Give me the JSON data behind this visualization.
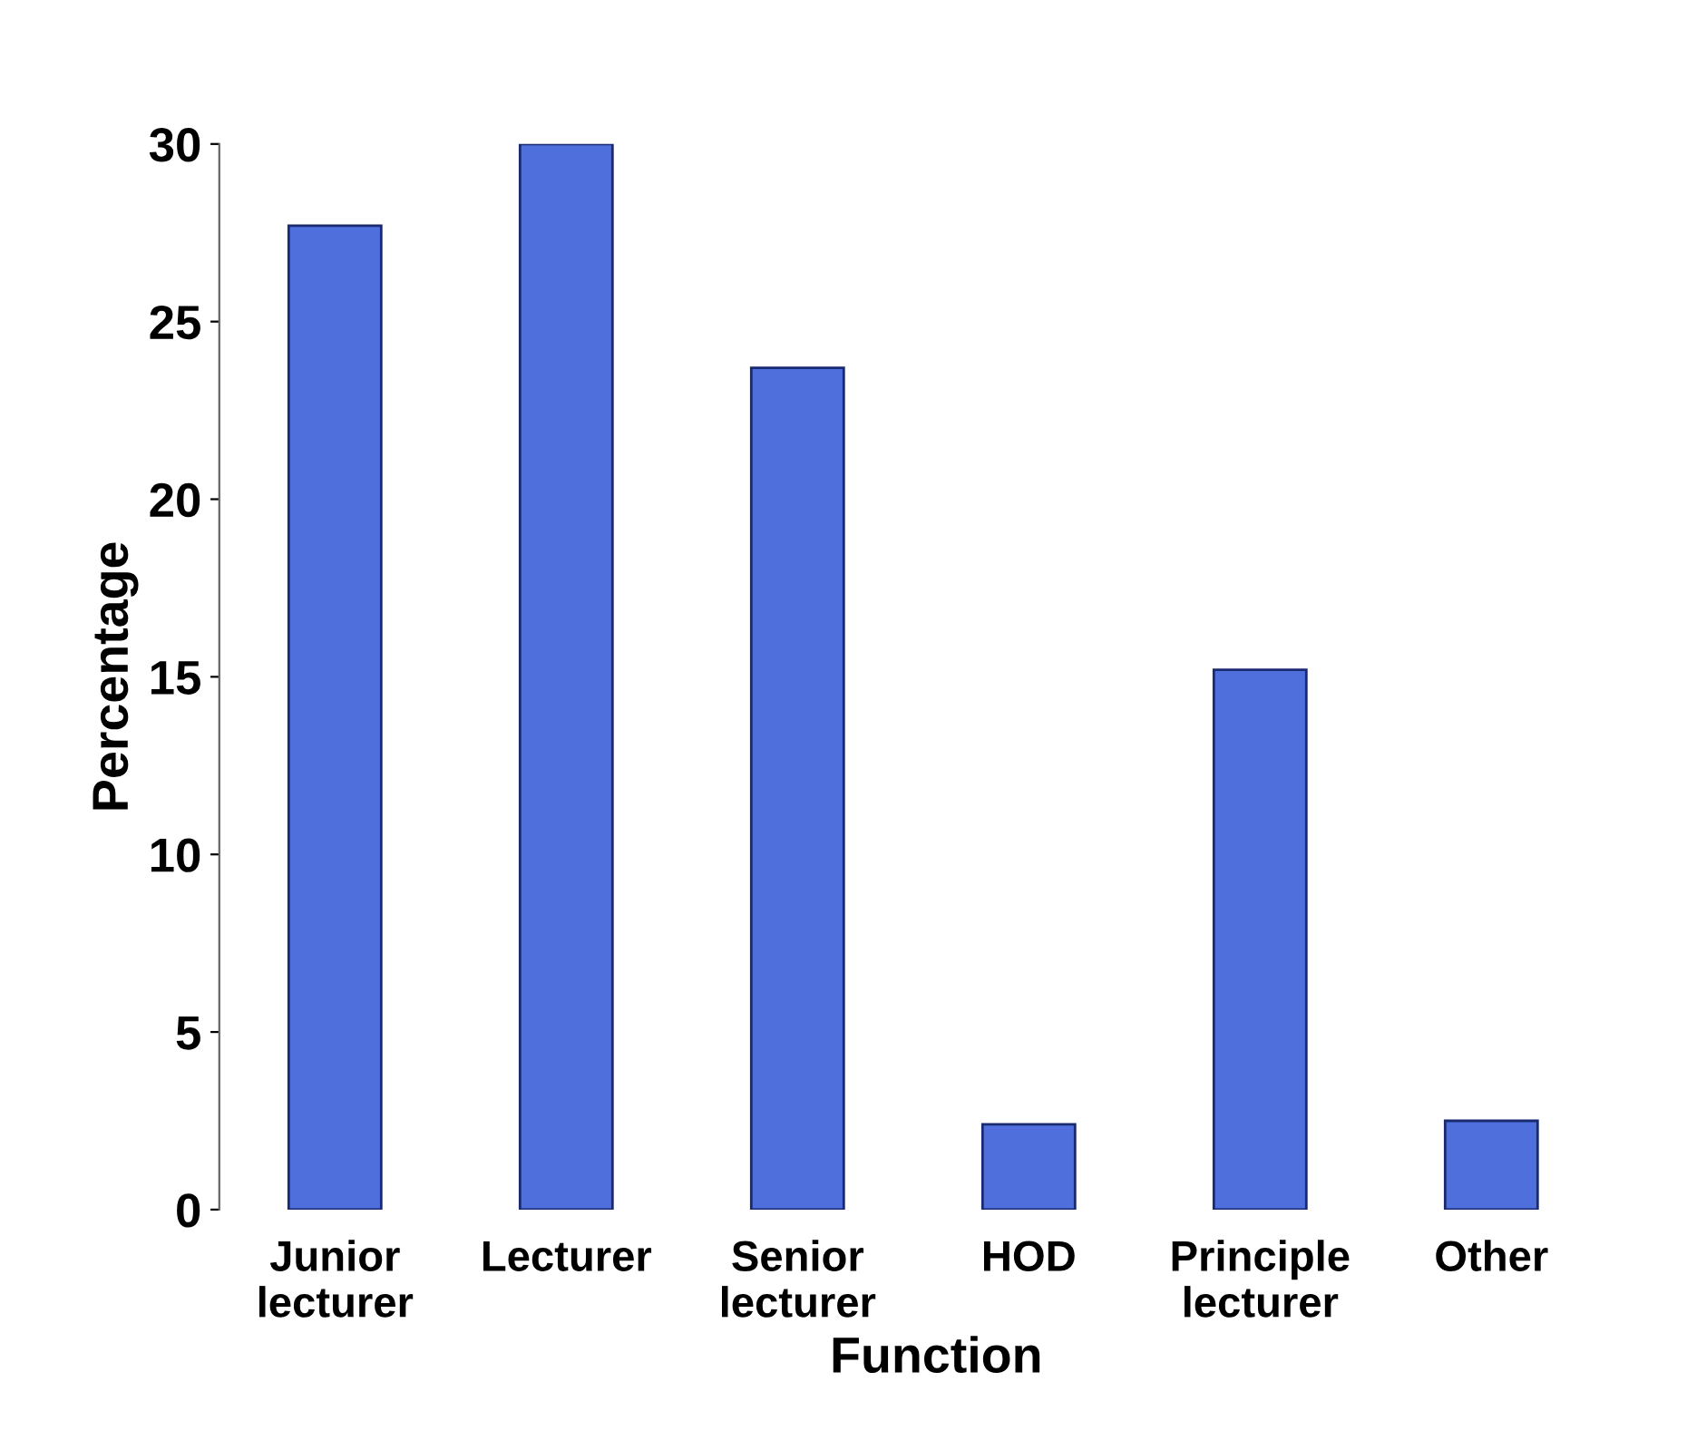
{
  "chart_data": {
    "type": "bar",
    "xlabel": "Function",
    "ylabel": "Percentage",
    "categories": [
      "Junior\nlecturer",
      "Lecturer",
      "Senior\nlecturer",
      "HOD",
      "Principle\nlecturer",
      "Other"
    ],
    "values": [
      27.7,
      30.0,
      23.7,
      2.4,
      15.2,
      2.5
    ],
    "color": "#4f6fdc",
    "ylim": [
      0,
      30
    ],
    "yticks": [
      0,
      5,
      10,
      15,
      20,
      25,
      30
    ],
    "grid": false
  }
}
